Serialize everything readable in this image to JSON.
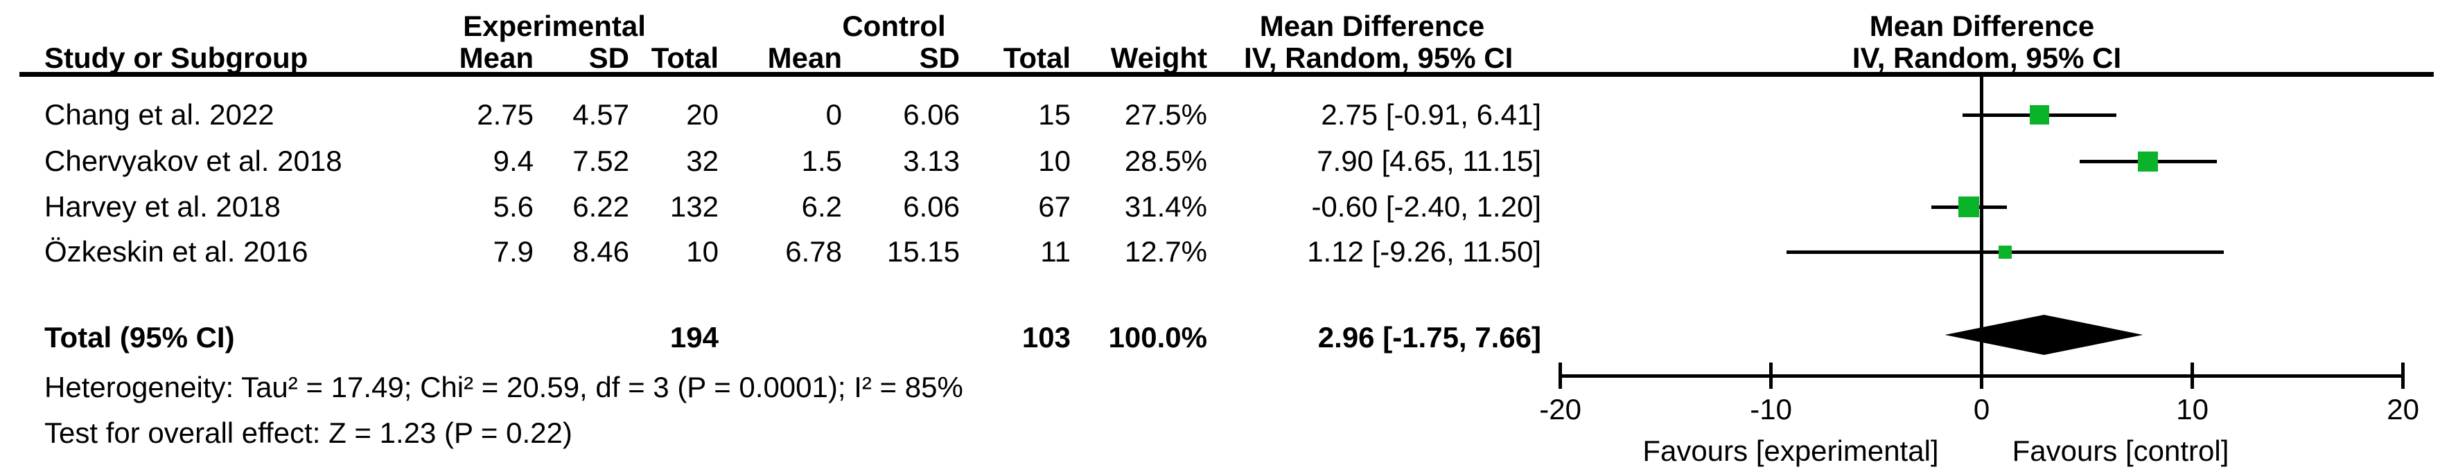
{
  "colors": {
    "marker_green": "#0bb32b",
    "diamond_black": "#000000",
    "line_black": "#000000"
  },
  "header": {
    "experimental_group": "Experimental",
    "control_group": "Control",
    "mean_difference_left": "Mean Difference",
    "mean_difference_right": "Mean Difference",
    "study_or_subgroup": "Study or Subgroup",
    "exp_mean": "Mean",
    "exp_sd": "SD",
    "exp_total": "Total",
    "ctrl_mean": "Mean",
    "ctrl_sd": "SD",
    "ctrl_total": "Total",
    "weight": "Weight",
    "iv_random_ci_left": "IV, Random, 95% CI",
    "iv_random_ci_right": "IV, Random, 95% CI"
  },
  "rows": [
    {
      "study": "Chang et al. 2022",
      "exp_mean": "2.75",
      "exp_sd": "4.57",
      "exp_total": "20",
      "ctrl_mean": "0",
      "ctrl_sd": "6.06",
      "ctrl_total": "15",
      "weight": "27.5%",
      "ci_text": "2.75 [-0.91, 6.41]"
    },
    {
      "study": "Chervyakov et al. 2018",
      "exp_mean": "9.4",
      "exp_sd": "7.52",
      "exp_total": "32",
      "ctrl_mean": "1.5",
      "ctrl_sd": "3.13",
      "ctrl_total": "10",
      "weight": "28.5%",
      "ci_text": "7.90 [4.65, 11.15]"
    },
    {
      "study": "Harvey et al. 2018",
      "exp_mean": "5.6",
      "exp_sd": "6.22",
      "exp_total": "132",
      "ctrl_mean": "6.2",
      "ctrl_sd": "6.06",
      "ctrl_total": "67",
      "weight": "31.4%",
      "ci_text": "-0.60 [-2.40, 1.20]"
    },
    {
      "study": "Özkeskin et al. 2016",
      "exp_mean": "7.9",
      "exp_sd": "8.46",
      "exp_total": "10",
      "ctrl_mean": "6.78",
      "ctrl_sd": "15.15",
      "ctrl_total": "11",
      "weight": "12.7%",
      "ci_text": "1.12 [-9.26, 11.50]"
    }
  ],
  "total_row": {
    "label": "Total (95% CI)",
    "exp_total": "194",
    "ctrl_total": "103",
    "weight": "100.0%",
    "ci_text": "2.96 [-1.75, 7.66]"
  },
  "footnotes": {
    "heterogeneity": "Heterogeneity: Tau² = 17.49; Chi² = 20.59, df = 3 (P = 0.0001); I² = 85%",
    "overall_effect": "Test for overall effect: Z = 1.23 (P = 0.22)"
  },
  "axis": {
    "tick_labels": [
      "-20",
      "-10",
      "0",
      "10",
      "20"
    ],
    "favours_left": "Favours [experimental]",
    "favours_right": "Favours [control]"
  },
  "chart_data": {
    "type": "scatter",
    "subtype": "forest-plot",
    "title": "Mean Difference — IV, Random, 95% CI",
    "effect_measure": "Mean Difference",
    "model": "IV, Random, 95% CI",
    "xlim": [
      -20,
      20
    ],
    "xticks": [
      -20,
      -10,
      0,
      10,
      20
    ],
    "grid": false,
    "studies": [
      {
        "name": "Chang et al. 2022",
        "md": 2.75,
        "ci": [
          -0.91,
          6.41
        ],
        "weight_pct": 27.5
      },
      {
        "name": "Chervyakov et al. 2018",
        "md": 7.9,
        "ci": [
          4.65,
          11.15
        ],
        "weight_pct": 28.5
      },
      {
        "name": "Harvey et al. 2018",
        "md": -0.6,
        "ci": [
          -2.4,
          1.2
        ],
        "weight_pct": 31.4
      },
      {
        "name": "Özkeskin et al. 2016",
        "md": 1.12,
        "ci": [
          -9.26,
          11.5
        ],
        "weight_pct": 12.7
      }
    ],
    "total": {
      "name": "Total (95% CI)",
      "md": 2.96,
      "ci": [
        -1.75,
        7.66
      ],
      "weight_pct": 100.0
    },
    "xlabel_left": "Favours [experimental]",
    "xlabel_right": "Favours [control]"
  }
}
